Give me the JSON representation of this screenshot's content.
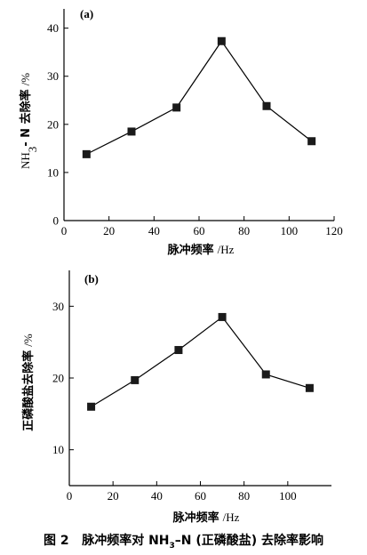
{
  "chart_data": [
    {
      "type": "line",
      "panel_label": "(a)",
      "x": [
        10,
        30,
        50,
        70,
        90,
        110
      ],
      "series": [
        {
          "values": [
            13.8,
            18.5,
            23.5,
            37.3,
            23.8,
            16.5
          ]
        }
      ],
      "xlabel": "脉冲频率",
      "xunit": "/Hz",
      "ylabel_pre": "NH",
      "ylabel_sub": "3",
      "ylabel_post": "- N 去除率",
      "yunit": "/%",
      "xlim": [
        0,
        120
      ],
      "ylim": [
        0,
        44
      ],
      "xticks": [
        0,
        20,
        40,
        60,
        80,
        100,
        120
      ],
      "yticks": [
        0,
        10,
        20,
        30,
        40
      ],
      "marker": "square",
      "grid": false
    },
    {
      "type": "line",
      "panel_label": "(b)",
      "x": [
        10,
        30,
        50,
        70,
        90,
        110
      ],
      "series": [
        {
          "values": [
            16.0,
            19.7,
            23.9,
            28.5,
            20.5,
            18.6
          ]
        }
      ],
      "xlabel": "脉冲频率",
      "xunit": "/Hz",
      "ylabel": "正磷酸盐去除率",
      "yunit": "/%",
      "xlim": [
        0,
        120
      ],
      "ylim": [
        5,
        35
      ],
      "xticks": [
        0,
        20,
        40,
        60,
        80,
        100
      ],
      "yticks": [
        10,
        20,
        30
      ],
      "marker": "square",
      "grid": false
    }
  ],
  "caption": {
    "label": "图 2",
    "text_pre": "脉冲频率对 NH",
    "text_sub": "3",
    "text_post": "–N (正磷酸盐) 去除率影响"
  }
}
